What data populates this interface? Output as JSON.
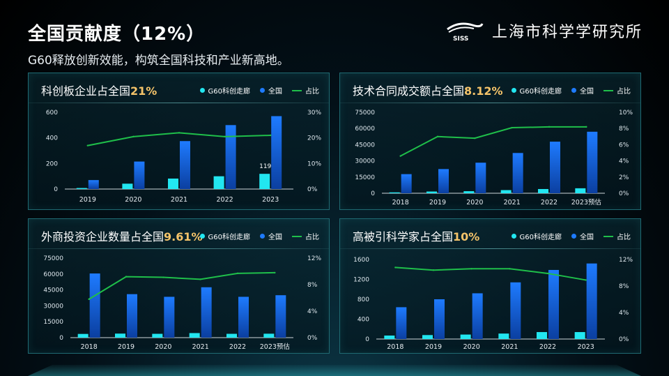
{
  "title": "全国贡献度（12%）",
  "subtitle": "G60释放创新效能，构筑全国科技和产业新高地。",
  "logo": {
    "mark": "SISS",
    "name": "上海市科学学研究所"
  },
  "colors": {
    "g60": "#22e6f0",
    "national": "#1e7bff",
    "share": "#1fbf4a",
    "highlight": "#f5c46a"
  },
  "chart_data": [
    {
      "type": "bar",
      "title_prefix": "科创板企业占全国",
      "title_value": "21%",
      "legend": [
        "G60科创走廊",
        "全国",
        "占比"
      ],
      "categories": [
        "2019",
        "2020",
        "2021",
        "2022",
        "2023"
      ],
      "series": [
        {
          "name": "G60科创走廊",
          "values": [
            8,
            42,
            82,
            100,
            119
          ]
        },
        {
          "name": "全国",
          "values": [
            70,
            215,
            375,
            500,
            570
          ]
        },
        {
          "name": "占比",
          "type": "line",
          "values": [
            17,
            20.5,
            22,
            20.5,
            21
          ]
        }
      ],
      "ylim": [
        0,
        600
      ],
      "yticks": [
        "0",
        "200",
        "400",
        "600"
      ],
      "y2lim": [
        0,
        30
      ],
      "y2ticks": [
        "0%",
        "10%",
        "20%",
        "30%"
      ],
      "data_labels": [
        {
          "index": 4,
          "text": "119"
        }
      ]
    },
    {
      "type": "bar",
      "title_prefix": "技术合同成交额占全国",
      "title_value": "8.12%",
      "legend": [
        "G60科创走廊",
        "全国",
        "占比"
      ],
      "categories": [
        "2018",
        "2019",
        "2020",
        "2021",
        "2022",
        "2023预估"
      ],
      "series": [
        {
          "name": "G60科创走廊",
          "values": [
            800,
            1600,
            1900,
            2900,
            3900,
            4600
          ]
        },
        {
          "name": "全国",
          "values": [
            17700,
            22400,
            28300,
            37300,
            47800,
            57000
          ]
        },
        {
          "name": "占比",
          "type": "line",
          "values": [
            4.6,
            7,
            6.8,
            8.1,
            8.2,
            8.2
          ]
        }
      ],
      "ylim": [
        0,
        75000
      ],
      "yticks": [
        "0",
        "15000",
        "30000",
        "45000",
        "60000",
        "75000"
      ],
      "y2lim": [
        0,
        10
      ],
      "y2ticks": [
        "0%",
        "2%",
        "4%",
        "6%",
        "8%",
        "10%"
      ]
    },
    {
      "type": "bar",
      "title_prefix": "外商投资企业数量占全国",
      "title_value": "9.61%",
      "legend": [
        "G60科创走廊",
        "全国",
        "占比"
      ],
      "categories": [
        "2018",
        "2019",
        "2020",
        "2021",
        "2022",
        "2023预估"
      ],
      "series": [
        {
          "name": "G60科创走廊",
          "values": [
            3500,
            3800,
            3600,
            4300,
            3600,
            3700
          ]
        },
        {
          "name": "全国",
          "values": [
            60500,
            41000,
            38500,
            47500,
            38500,
            40000
          ]
        },
        {
          "name": "占比",
          "type": "line",
          "values": [
            5.8,
            9.2,
            9.1,
            8.8,
            9.7,
            9.8
          ]
        }
      ],
      "ylim": [
        0,
        75000
      ],
      "yticks": [
        "0",
        "15000",
        "30000",
        "45000",
        "60000",
        "75000"
      ],
      "y2lim": [
        0,
        12
      ],
      "y2ticks": [
        "0%",
        "4%",
        "8%",
        "12%"
      ]
    },
    {
      "type": "bar",
      "title_prefix": "高被引科学家占全国",
      "title_value": "10%",
      "legend": [
        "G60科创走廊",
        "全国",
        "占比"
      ],
      "categories": [
        "2018",
        "2019",
        "2020",
        "2021",
        "2022",
        "2023"
      ],
      "series": [
        {
          "name": "G60科创走廊",
          "values": [
            70,
            80,
            90,
            110,
            140,
            140
          ]
        },
        {
          "name": "全国",
          "values": [
            640,
            800,
            920,
            1140,
            1390,
            1520
          ]
        },
        {
          "name": "占比",
          "type": "line",
          "values": [
            10.8,
            10.4,
            10.6,
            10.6,
            9.9,
            8.9
          ]
        }
      ],
      "ylim": [
        0,
        1600
      ],
      "yticks": [
        "0",
        "400",
        "800",
        "1200",
        "1600"
      ],
      "y2lim": [
        0,
        12
      ],
      "y2ticks": [
        "0%",
        "4%",
        "8%",
        "12%"
      ]
    }
  ]
}
